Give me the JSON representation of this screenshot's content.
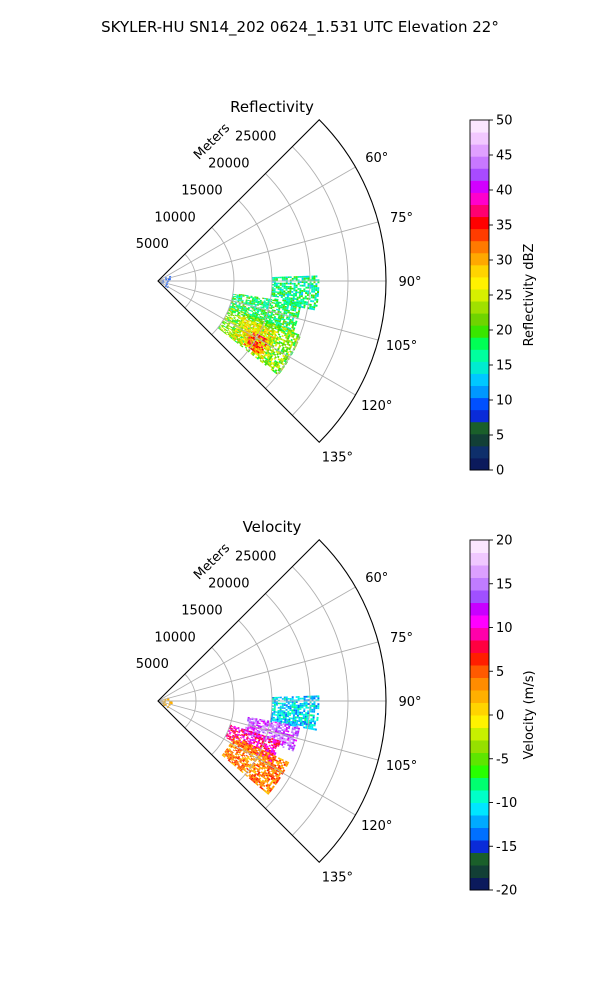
{
  "figure": {
    "title": "SKYLER-HU  SN14_202  0624_1.531 UTC Elevation 22°"
  },
  "chart_data": [
    {
      "type": "heatmap",
      "title": "Reflectivity",
      "projection": "polar-sector",
      "radial_axis_label": "Meters",
      "range_ticks": [
        "5000",
        "10000",
        "15000",
        "20000",
        "25000"
      ],
      "range_lim": [
        0,
        30000
      ],
      "azimuth_lim": [
        45,
        135
      ],
      "azimuth_ticks": [
        "60°",
        "75°",
        "90°",
        "105°",
        "120°",
        "135°"
      ],
      "grid": true,
      "colorbar": {
        "label": "Reflectivity dBZ",
        "range": [
          0,
          50
        ],
        "ticks": [
          "0",
          "5",
          "10",
          "15",
          "20",
          "25",
          "30",
          "35",
          "40",
          "45",
          "50"
        ]
      },
      "echo_regions": [
        {
          "az_range": [
            88,
            100
          ],
          "range_m": [
            15000,
            21000
          ],
          "value": 17
        },
        {
          "az_range": [
            99,
            112
          ],
          "range_m": [
            10000,
            19000
          ],
          "value": 18
        },
        {
          "az_range": [
            110,
            128
          ],
          "range_m": [
            10000,
            20000
          ],
          "value": 22
        },
        {
          "az_range": [
            113,
            127
          ],
          "range_m": [
            12000,
            17000
          ],
          "value": 27
        },
        {
          "az_range": [
            118,
            126
          ],
          "range_m": [
            14000,
            16500
          ],
          "value": 33
        }
      ]
    },
    {
      "type": "heatmap",
      "title": "Velocity",
      "projection": "polar-sector",
      "radial_axis_label": "Meters",
      "range_ticks": [
        "5000",
        "10000",
        "15000",
        "20000",
        "25000"
      ],
      "range_lim": [
        0,
        30000
      ],
      "azimuth_lim": [
        45,
        135
      ],
      "azimuth_ticks": [
        "60°",
        "75°",
        "90°",
        "105°",
        "120°",
        "135°"
      ],
      "grid": true,
      "colorbar": {
        "label": "Velocity (m/s)",
        "range": [
          -20,
          20
        ],
        "ticks": [
          "-20",
          "-15",
          "-10",
          "-5",
          "0",
          "5",
          "10",
          "15",
          "20"
        ]
      },
      "echo_regions": [
        {
          "az_range": [
            88,
            100
          ],
          "range_m": [
            15000,
            21000
          ],
          "value": -11
        },
        {
          "az_range": [
            100,
            110
          ],
          "range_m": [
            12000,
            19000
          ],
          "value": 14
        },
        {
          "az_range": [
            108,
            118
          ],
          "range_m": [
            10000,
            17000
          ],
          "value": 9
        },
        {
          "az_range": [
            115,
            130
          ],
          "range_m": [
            11000,
            19000
          ],
          "value": 4
        }
      ]
    }
  ]
}
